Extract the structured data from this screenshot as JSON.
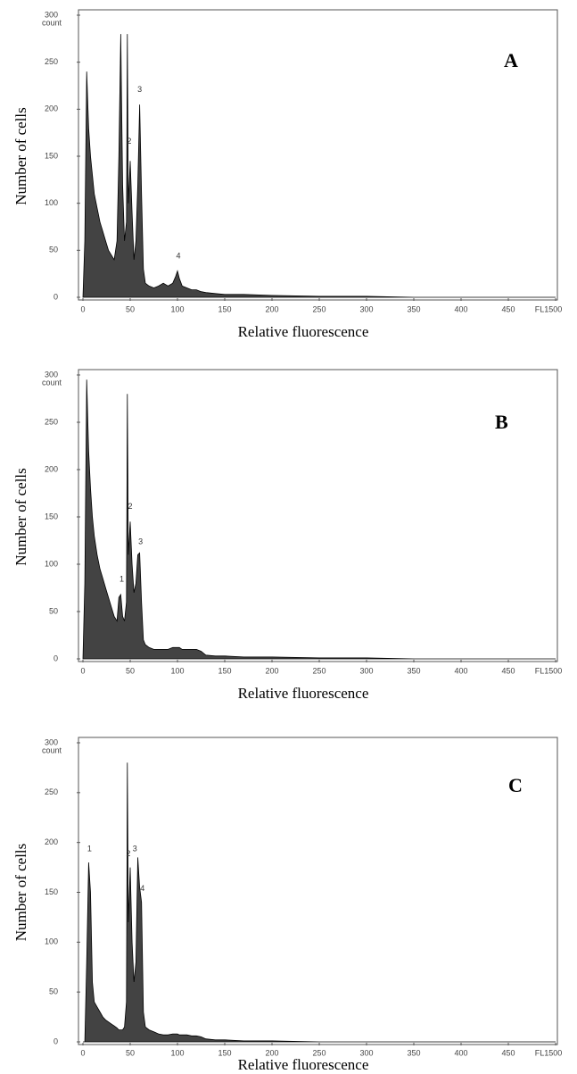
{
  "chart_data": [
    {
      "type": "area",
      "panel_label": "A",
      "ylabel": "Number of cells",
      "xlabel": "Relative fluorescence",
      "y_unit": "count",
      "color": "#222222",
      "x": [
        0,
        2,
        4,
        6,
        8,
        10,
        12,
        15,
        18,
        21,
        24,
        27,
        30,
        33,
        36,
        38,
        40,
        42,
        44,
        46,
        47,
        48,
        50,
        52,
        54,
        56,
        58,
        60,
        62,
        64,
        66,
        70,
        75,
        80,
        85,
        90,
        95,
        98,
        100,
        102,
        105,
        110,
        115,
        120,
        125,
        130,
        140,
        150,
        170,
        200,
        250,
        300,
        350,
        400,
        450,
        500
      ],
      "values": [
        0,
        60,
        240,
        180,
        150,
        130,
        110,
        95,
        80,
        70,
        60,
        50,
        45,
        40,
        60,
        150,
        280,
        120,
        60,
        80,
        280,
        100,
        145,
        90,
        40,
        60,
        120,
        205,
        110,
        30,
        15,
        12,
        10,
        12,
        15,
        12,
        15,
        22,
        28,
        20,
        12,
        10,
        8,
        8,
        6,
        5,
        4,
        3,
        3,
        2,
        1,
        1,
        0,
        0,
        0,
        0
      ],
      "annotations": [
        {
          "text": "2",
          "x": 49,
          "y": 160
        },
        {
          "text": "3",
          "x": 60,
          "y": 215
        },
        {
          "text": "4",
          "x": 101,
          "y": 38
        }
      ],
      "xlim": [
        0,
        500
      ],
      "ylim": [
        0,
        300
      ],
      "xticks": [
        0,
        50,
        100,
        150,
        200,
        250,
        300,
        350,
        400,
        450,
        {
          "value": 500,
          "label": "FL1500"
        }
      ],
      "yticks": [
        0,
        50,
        100,
        150,
        200,
        250,
        300
      ]
    },
    {
      "type": "area",
      "panel_label": "B",
      "ylabel": "Number of cells",
      "xlabel": "Relative fluorescence",
      "y_unit": "count",
      "color": "#222222",
      "x": [
        0,
        2,
        4,
        6,
        8,
        10,
        12,
        15,
        18,
        21,
        24,
        27,
        30,
        33,
        36,
        38,
        40,
        42,
        44,
        46,
        47,
        48,
        50,
        52,
        54,
        56,
        58,
        60,
        62,
        64,
        66,
        70,
        75,
        80,
        85,
        90,
        95,
        98,
        100,
        102,
        105,
        110,
        115,
        120,
        125,
        130,
        140,
        150,
        170,
        200,
        250,
        300,
        350,
        400,
        450,
        500
      ],
      "values": [
        0,
        80,
        295,
        220,
        180,
        150,
        130,
        110,
        95,
        85,
        75,
        65,
        55,
        45,
        40,
        65,
        68,
        45,
        40,
        60,
        280,
        110,
        145,
        100,
        70,
        80,
        110,
        112,
        60,
        20,
        15,
        12,
        10,
        10,
        10,
        10,
        12,
        12,
        12,
        12,
        10,
        10,
        10,
        10,
        8,
        4,
        3,
        3,
        2,
        2,
        1,
        1,
        0,
        0,
        0,
        0
      ],
      "annotations": [
        {
          "text": "1",
          "x": 41,
          "y": 78
        },
        {
          "text": "2",
          "x": 50,
          "y": 155
        },
        {
          "text": "3",
          "x": 61,
          "y": 118
        }
      ],
      "xlim": [
        0,
        500
      ],
      "ylim": [
        0,
        300
      ],
      "xticks": [
        0,
        50,
        100,
        150,
        200,
        250,
        300,
        350,
        400,
        450,
        {
          "value": 500,
          "label": "FL1500"
        }
      ],
      "yticks": [
        0,
        50,
        100,
        150,
        200,
        250,
        300
      ]
    },
    {
      "type": "area",
      "panel_label": "C",
      "ylabel": "Number of cells",
      "xlabel": "Relative fluorescence",
      "y_unit": "count",
      "color": "#222222",
      "x": [
        0,
        2,
        4,
        6,
        8,
        10,
        12,
        15,
        18,
        21,
        24,
        27,
        30,
        33,
        36,
        38,
        40,
        42,
        44,
        46,
        47,
        48,
        50,
        52,
        54,
        56,
        58,
        60,
        62,
        64,
        66,
        70,
        75,
        80,
        85,
        90,
        95,
        98,
        100,
        102,
        105,
        110,
        115,
        120,
        125,
        130,
        140,
        150,
        170,
        200,
        250,
        300,
        350,
        400,
        450,
        500
      ],
      "values": [
        0,
        0,
        80,
        180,
        150,
        60,
        40,
        35,
        30,
        25,
        22,
        20,
        18,
        16,
        14,
        12,
        12,
        12,
        15,
        40,
        280,
        120,
        175,
        100,
        60,
        80,
        185,
        155,
        140,
        30,
        15,
        12,
        10,
        8,
        7,
        7,
        8,
        8,
        8,
        7,
        7,
        7,
        6,
        6,
        5,
        3,
        2,
        2,
        1,
        1,
        0,
        0,
        0,
        0,
        0,
        0
      ],
      "annotations": [
        {
          "text": "1",
          "x": 7,
          "y": 188
        },
        {
          "text": "2",
          "x": 48,
          "y": 183
        },
        {
          "text": "3",
          "x": 55,
          "y": 188
        },
        {
          "text": "4",
          "x": 63,
          "y": 148
        }
      ],
      "xlim": [
        0,
        500
      ],
      "ylim": [
        0,
        300
      ],
      "xticks": [
        0,
        50,
        100,
        150,
        200,
        250,
        300,
        350,
        400,
        450,
        {
          "value": 500,
          "label": "FL1500"
        }
      ],
      "yticks": [
        0,
        50,
        100,
        150,
        200,
        250,
        300
      ]
    }
  ]
}
